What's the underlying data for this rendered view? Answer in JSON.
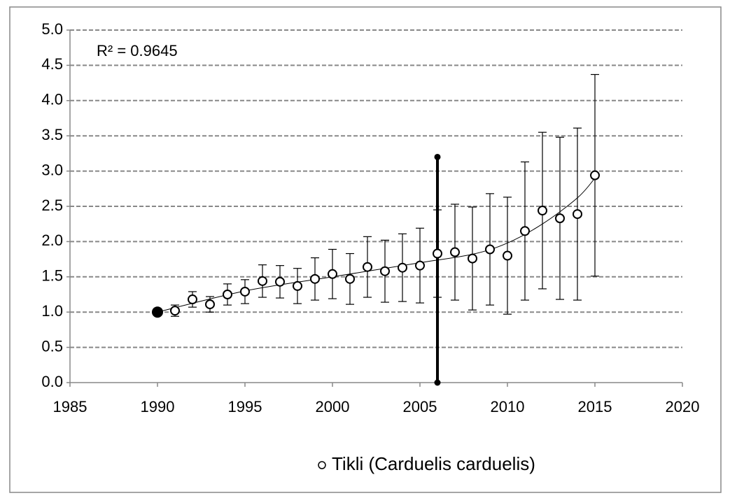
{
  "chart_data": {
    "type": "scatter",
    "annotation": "R² = 0.9645",
    "legend": "Tikli (Carduelis carduelis)",
    "x": [
      1991,
      1992,
      1993,
      1994,
      1995,
      1996,
      1997,
      1998,
      1999,
      2000,
      2001,
      2002,
      2003,
      2004,
      2005,
      2006,
      2007,
      2008,
      2009,
      2010,
      2011,
      2012,
      2013,
      2014,
      2015
    ],
    "values": [
      1.02,
      1.18,
      1.11,
      1.25,
      1.29,
      1.44,
      1.43,
      1.37,
      1.47,
      1.54,
      1.47,
      1.64,
      1.58,
      1.63,
      1.66,
      1.83,
      1.85,
      1.76,
      1.89,
      1.8,
      2.15,
      2.44,
      2.33,
      2.39,
      2.94
    ],
    "errors": [
      0.08,
      0.11,
      0.11,
      0.15,
      0.17,
      0.23,
      0.23,
      0.25,
      0.3,
      0.35,
      0.36,
      0.43,
      0.44,
      0.48,
      0.53,
      0.62,
      0.68,
      0.73,
      0.79,
      0.83,
      0.98,
      1.11,
      1.15,
      1.22,
      1.43
    ],
    "base_point": {
      "x": 1990,
      "value": 1.0
    },
    "reference_line": {
      "x": 2006,
      "values": [
        0,
        3.2
      ]
    },
    "trendline": {
      "x": [
        1990,
        1995,
        2000,
        2005,
        2008,
        2010,
        2012,
        2014,
        2015
      ],
      "values": [
        1.0,
        1.3,
        1.5,
        1.7,
        1.82,
        1.98,
        2.25,
        2.62,
        2.9
      ]
    },
    "xlim": [
      1985,
      2020
    ],
    "xticks": [
      1985,
      1990,
      1995,
      2000,
      2005,
      2010,
      2015,
      2020
    ],
    "ylim": [
      0,
      5
    ],
    "yticks": [
      {
        "value": 0,
        "label": "0.0"
      },
      0.5,
      {
        "value": 1,
        "label": "1.0"
      },
      1.5,
      {
        "value": 2,
        "label": "2.0"
      },
      2.5,
      {
        "value": 3,
        "label": "3.0"
      },
      3.5,
      {
        "value": 4,
        "label": "4.0"
      },
      4.5,
      {
        "value": 5,
        "label": "5.0"
      }
    ],
    "grid": true
  }
}
